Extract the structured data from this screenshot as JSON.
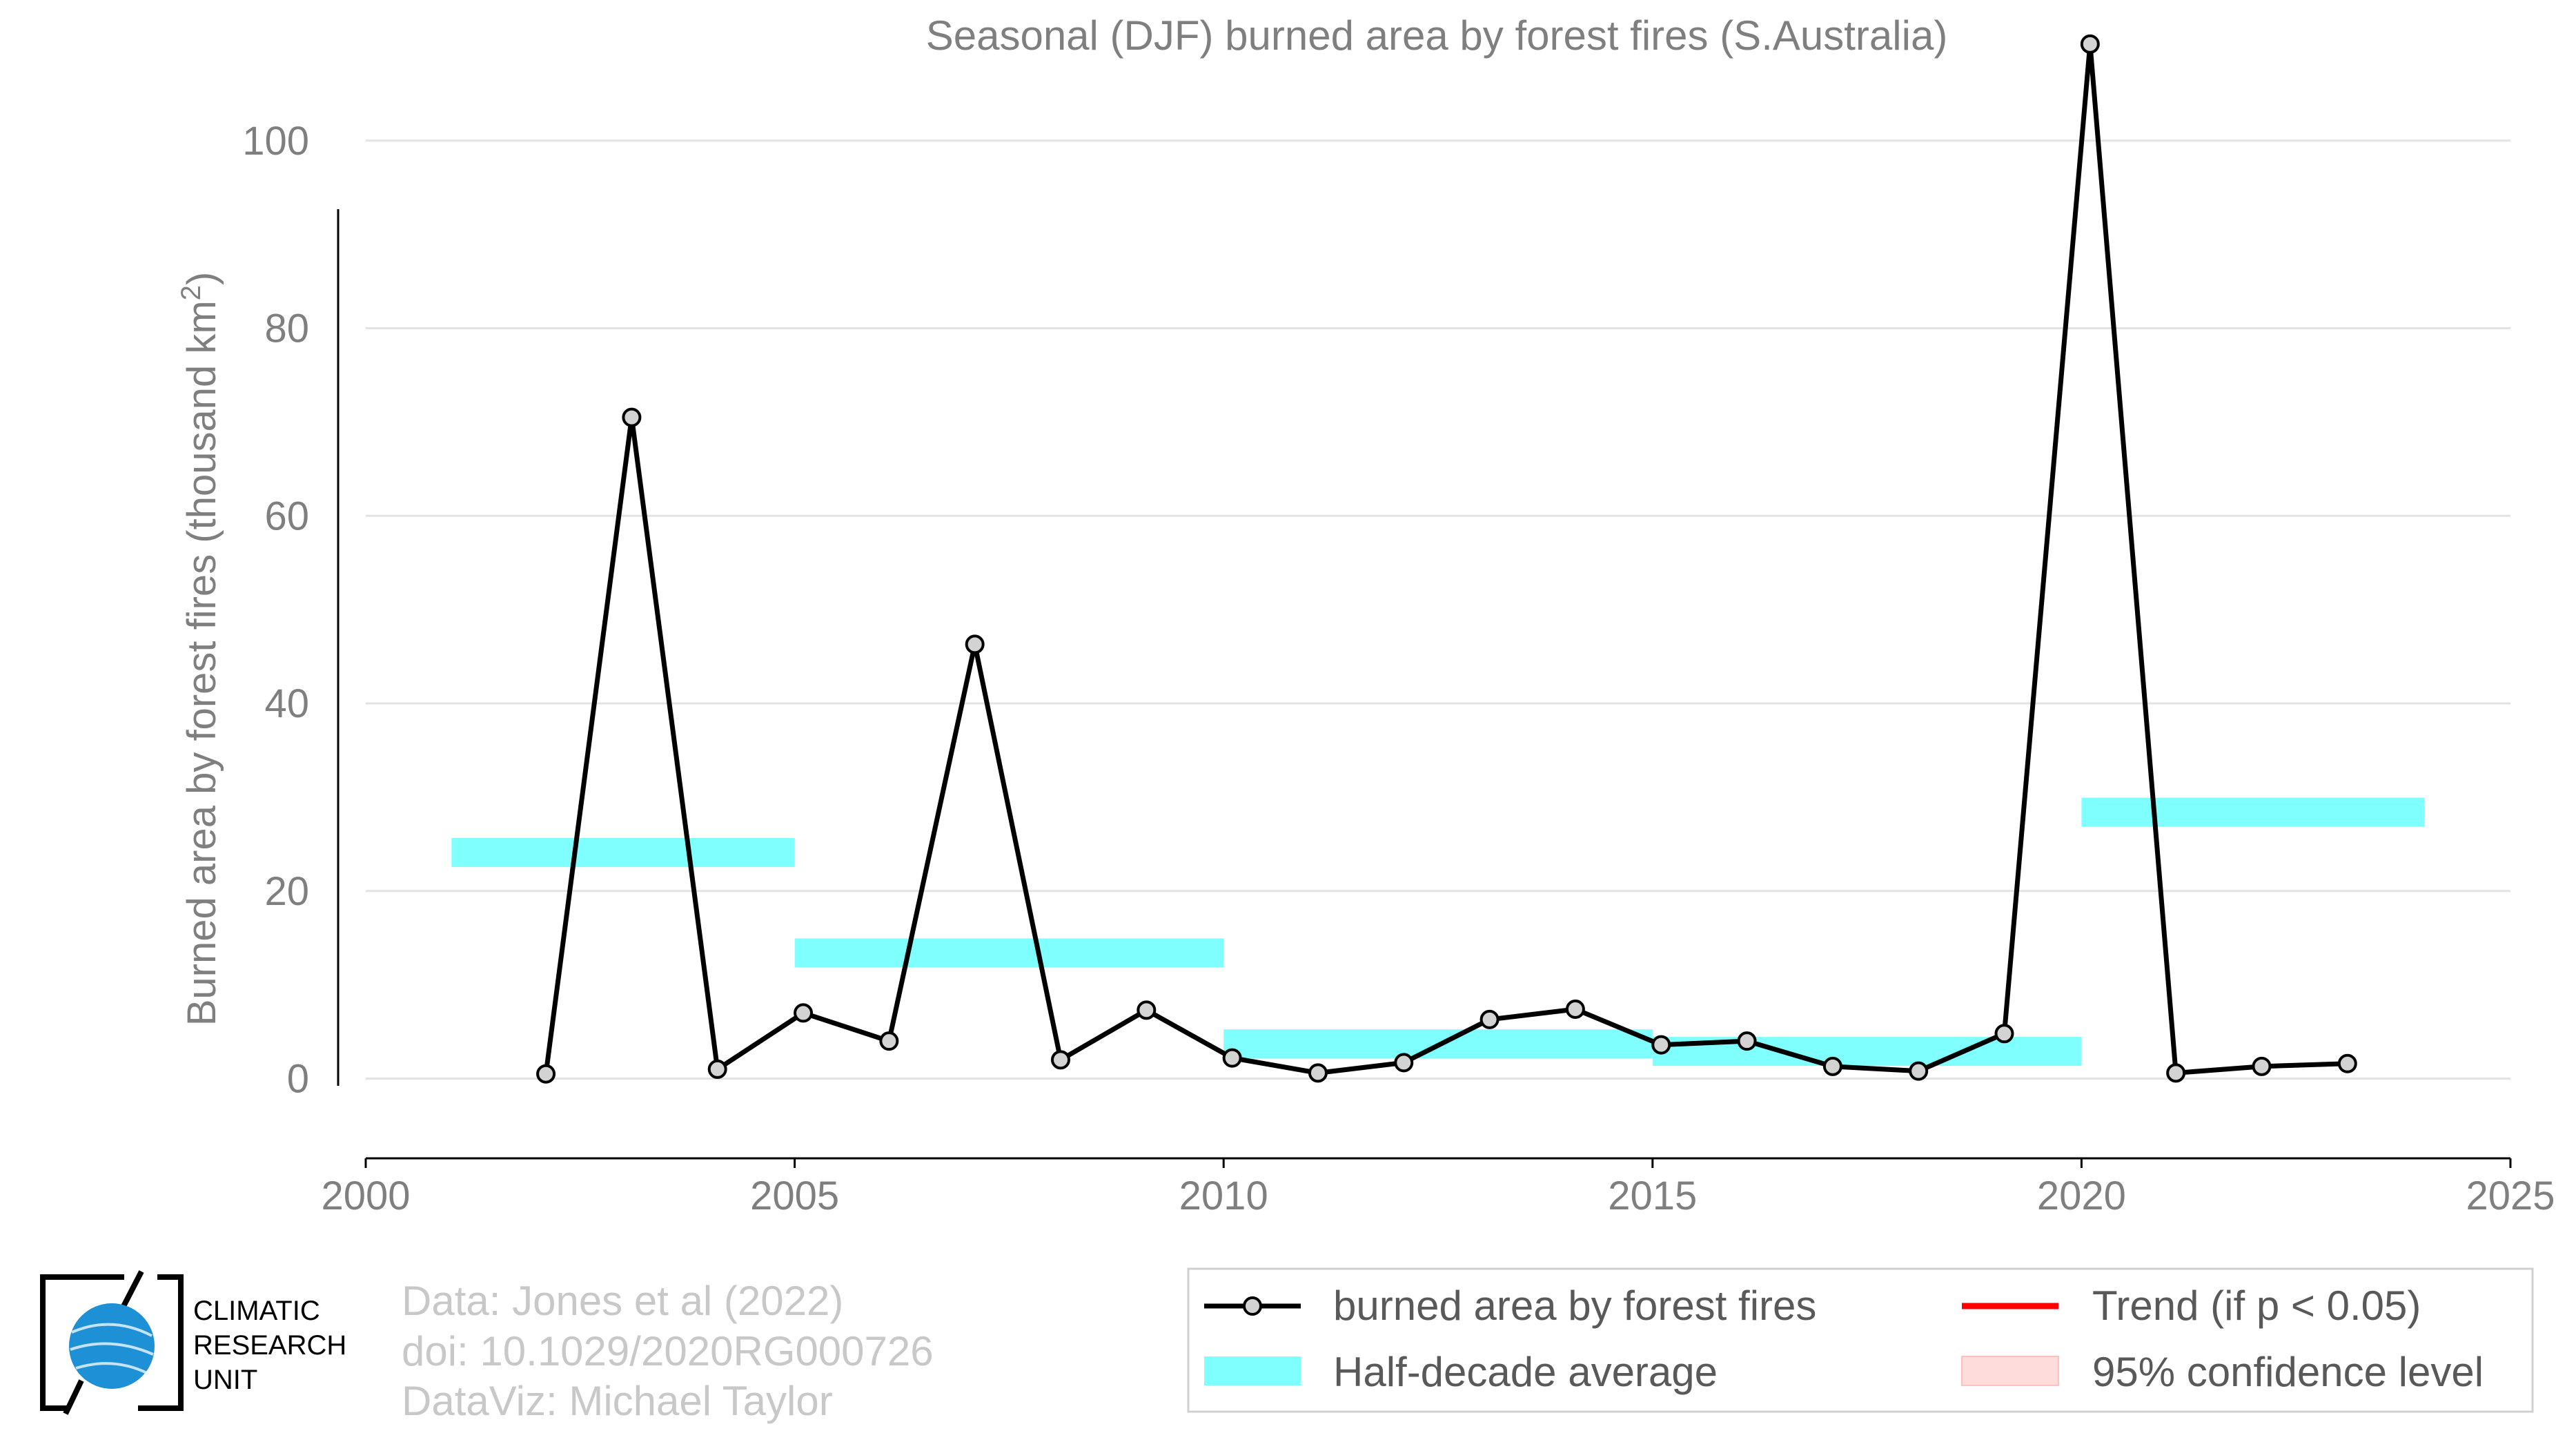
{
  "chart_data": {
    "type": "line",
    "title": "Seasonal (DJF) burned area by forest fires (S.Australia)",
    "ylabel": "Burned area by forest fires (thousand km",
    "ylabel_sup": "2",
    "ylabel_close": ")",
    "xlabel": "",
    "xlim": [
      2000,
      2025
    ],
    "ylim": [
      -8.5,
      115
    ],
    "xticks": [
      2000,
      2005,
      2010,
      2015,
      2020,
      2025
    ],
    "yticks": [
      0,
      20,
      40,
      60,
      80,
      100
    ],
    "grid": true,
    "series": [
      {
        "name": "burned area by forest fires",
        "color": "#000000",
        "marker_fill": "#d3d3d3",
        "x": [
          2002.1,
          2003.1,
          2004.1,
          2005.1,
          2006.1,
          2007.1,
          2008.1,
          2009.1,
          2010.1,
          2011.1,
          2012.1,
          2013.1,
          2014.1,
          2015.1,
          2016.1,
          2017.1,
          2018.1,
          2019.1,
          2020.1,
          2021.1,
          2022.1,
          2023.1
        ],
        "y": [
          0.5,
          70.5,
          1.0,
          7.0,
          4.0,
          46.3,
          2.0,
          7.3,
          2.2,
          0.6,
          1.7,
          6.3,
          7.4,
          3.6,
          4.0,
          1.3,
          0.8,
          4.8,
          110.3,
          0.6,
          1.3,
          1.6
        ]
      }
    ],
    "half_decade_average": {
      "name": "Half-decade average",
      "color": "#80ffff",
      "segments": [
        {
          "x0": 2001,
          "x1": 2005,
          "value": 24.1
        },
        {
          "x0": 2005,
          "x1": 2010,
          "value": 13.4
        },
        {
          "x0": 2010,
          "x1": 2015,
          "value": 3.7
        },
        {
          "x0": 2015,
          "x1": 2020,
          "value": 2.9
        },
        {
          "x0": 2020,
          "x1": 2024,
          "value": 28.4
        }
      ]
    },
    "legend": {
      "placement": "bottom-right",
      "entries": [
        {
          "label": "burned area by forest fires",
          "kind": "line-marker",
          "color": "#000000"
        },
        {
          "label": "Trend (if p < 0.05)",
          "kind": "line",
          "color": "#ff0000"
        },
        {
          "label": "Half-decade average",
          "kind": "band",
          "color": "#80ffff"
        },
        {
          "label": "95% confidence level",
          "kind": "band",
          "color": "#ffdcdc"
        }
      ]
    }
  },
  "credits": {
    "line1": "Data: Jones et al (2022)",
    "line2": "doi: 10.1029/2020RG000726",
    "line3": "DataViz: Michael Taylor"
  },
  "logo": {
    "line1": "CLIMATIC",
    "line2": "RESEARCH",
    "line3": "UNIT",
    "globe_color": "#1e90d6"
  }
}
